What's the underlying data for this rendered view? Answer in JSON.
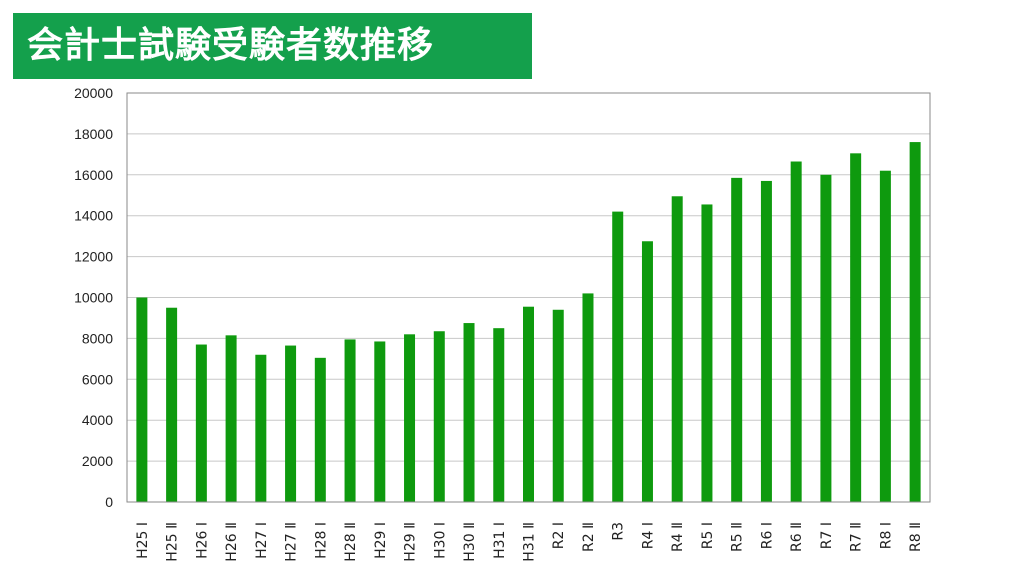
{
  "title": "会計士試験受験者数推移",
  "colors": {
    "banner": "#14a04c",
    "bar": "#0e9a0e",
    "grid": "#c8c8c8",
    "axis": "#8a8a8a"
  },
  "chart_data": {
    "type": "bar",
    "title": "",
    "xlabel": "",
    "ylabel": "",
    "ylim": [
      0,
      20000
    ],
    "yticks": [
      0,
      2000,
      4000,
      6000,
      8000,
      10000,
      12000,
      14000,
      16000,
      18000,
      20000
    ],
    "grid": true,
    "legend": "none",
    "categories": [
      "H25 Ⅰ",
      "H25 Ⅱ",
      "H26 Ⅰ",
      "H26 Ⅱ",
      "H27 Ⅰ",
      "H27 Ⅱ",
      "H28 Ⅰ",
      "H28 Ⅱ",
      "H29 Ⅰ",
      "H29 Ⅱ",
      "H30 Ⅰ",
      "H30 Ⅱ",
      "H31 Ⅰ",
      "H31 Ⅱ",
      "R2 Ⅰ",
      "R2 Ⅱ",
      "R3",
      "R4 Ⅰ",
      "R4 Ⅱ",
      "R5 Ⅰ",
      "R5 Ⅱ",
      "R6 Ⅰ",
      "R6 Ⅱ",
      "R7 Ⅰ",
      "R7 Ⅱ",
      "R8 Ⅰ",
      "R8 Ⅱ"
    ],
    "values": [
      10000,
      9500,
      7700,
      8150,
      7200,
      7650,
      7050,
      7950,
      7850,
      8200,
      8350,
      8750,
      8500,
      9550,
      9400,
      10200,
      14200,
      12750,
      14950,
      14550,
      15850,
      15700,
      16650,
      16000,
      17050,
      16200,
      17600
    ]
  }
}
